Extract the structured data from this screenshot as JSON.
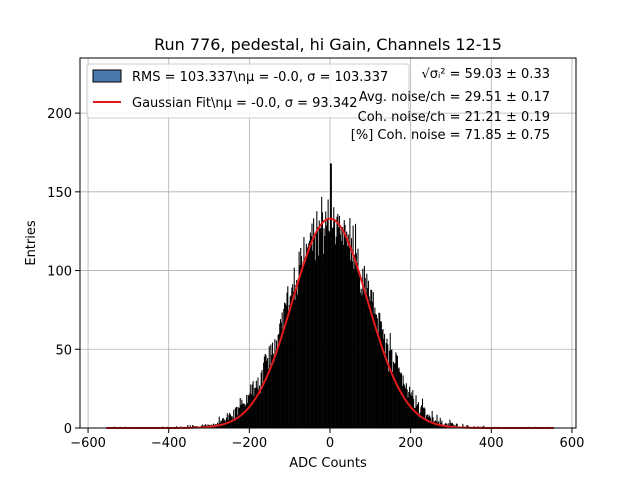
{
  "chart_data": {
    "type": "bar",
    "title": "Run 776, pedestal, hi Gain, Channels 12-15",
    "xlabel": "ADC Counts",
    "ylabel": "Entries",
    "xlim": [
      -620,
      610
    ],
    "ylim": [
      0,
      235
    ],
    "xticks": [
      -600,
      -400,
      -200,
      0,
      200,
      400,
      600
    ],
    "xtick_labels": [
      "−600",
      "−400",
      "−200",
      "0",
      "200",
      "400",
      "600"
    ],
    "yticks": [
      0,
      50,
      100,
      150,
      200
    ],
    "ytick_labels": [
      "0",
      "50",
      "100",
      "150",
      "200"
    ],
    "grid": true,
    "legend_placement": "top-left",
    "histogram": {
      "name": "RMS = 103.337\\nμ = -0.0, σ = 103.337",
      "color": "#000000",
      "legend_color": "#4a7aad",
      "bin_start": -550,
      "bin_width": 2,
      "tallest_peak": {
        "x": 2,
        "y": 168
      },
      "approx_mean": 0,
      "approx_sigma": 103.337,
      "approx_amplitude": 133
    },
    "fit": {
      "name": "Gaussian Fit\\nμ = -0.0, σ = 93.342",
      "color": "#e31a1c",
      "mu": 0.0,
      "sigma": 93.342,
      "amplitude": 133,
      "x_range": [
        -555,
        555
      ]
    },
    "legend": [
      {
        "label": "RMS = 103.337\\nμ = -0.0, σ = 103.337",
        "kind": "patch"
      },
      {
        "label": "Gaussian Fit\\nμ = -0.0, σ = 93.342",
        "kind": "line"
      }
    ],
    "annotations": [
      "√σᵢ² = 59.03 ± 0.33",
      "Avg. noise/ch = 29.51 ± 0.17",
      "Coh. noise/ch = 21.21 ± 0.19",
      "[%] Coh. noise = 71.85 ± 0.75"
    ]
  }
}
